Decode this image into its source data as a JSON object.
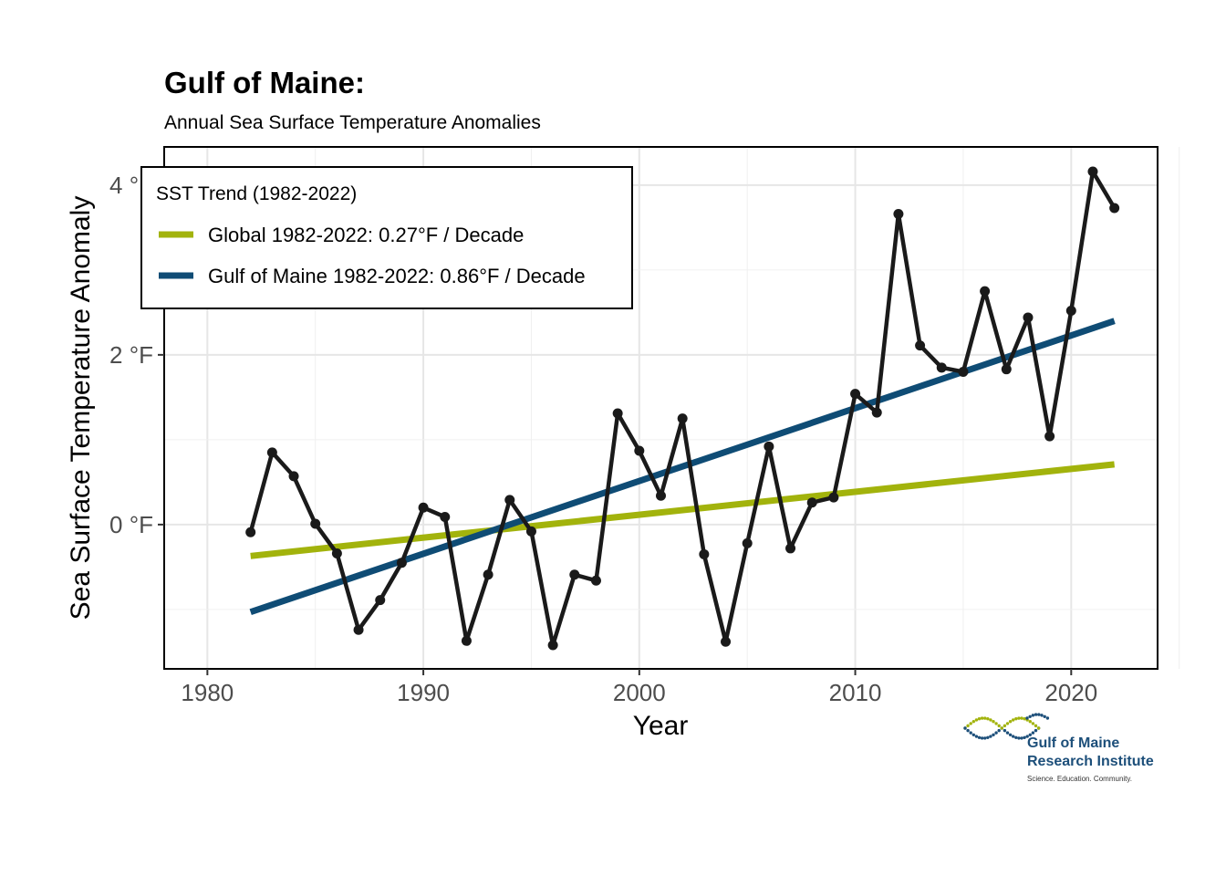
{
  "chart_data": {
    "type": "line",
    "title": "Gulf of Maine:",
    "subtitle": "Annual Sea Surface Temperature Anomalies",
    "xlabel": "Year",
    "ylabel": "Sea Surface Temperature Anomaly",
    "xlim": [
      1978,
      2024
    ],
    "ylim": [
      -1.7,
      4.45
    ],
    "x_ticks": [
      1980,
      1990,
      2000,
      2010,
      2020
    ],
    "x_tick_labels": [
      "1980",
      "1990",
      "2000",
      "2010",
      "2020"
    ],
    "y_ticks": [
      0,
      2,
      4
    ],
    "y_tick_labels": [
      "0 °F",
      "2 °F",
      "4 °F"
    ],
    "grid": true,
    "legend": {
      "title": "SST Trend (1982-2022)",
      "placement": "top-left",
      "entries": [
        {
          "label": "Global 1982-2022: 0.27°F / Decade",
          "color": "#a2b30c"
        },
        {
          "label": "Gulf of Maine 1982-2022: 0.86°F / Decade",
          "color": "#0f4c75"
        }
      ]
    },
    "series": [
      {
        "name": "",
        "color": "#1a1a1a",
        "x": [
          1982,
          1983,
          1984,
          1985,
          1986,
          1987,
          1988,
          1989,
          1990,
          1991,
          1992,
          1993,
          1994,
          1995,
          1996,
          1997,
          1998,
          1999,
          2000,
          2001,
          2002,
          2003,
          2004,
          2005,
          2006,
          2007,
          2008,
          2009,
          2010,
          2011,
          2012,
          2013,
          2014,
          2015,
          2016,
          2017,
          2018,
          2019,
          2020,
          2021,
          2022
        ],
        "y": [
          -0.09,
          0.85,
          0.57,
          0.01,
          -0.34,
          -1.24,
          -0.89,
          -0.45,
          0.2,
          0.09,
          -1.37,
          -0.59,
          0.29,
          -0.08,
          -1.42,
          -0.59,
          -0.66,
          1.31,
          0.87,
          0.34,
          1.25,
          -0.35,
          -1.38,
          -0.22,
          0.92,
          -0.28,
          0.26,
          0.32,
          1.54,
          1.32,
          3.66,
          2.11,
          1.85,
          1.8,
          2.75,
          1.83,
          2.44,
          1.04,
          2.52,
          4.16,
          3.73
        ]
      }
    ],
    "trend_lines": [
      {
        "name": "Global 1982-2022: 0.27°F / Decade",
        "color": "#a2b30c",
        "x": [
          1982,
          2022
        ],
        "y": [
          -0.37,
          0.71
        ]
      },
      {
        "name": "Gulf of Maine 1982-2022: 0.86°F / Decade",
        "color": "#0f4c75",
        "x": [
          1982,
          2022
        ],
        "y": [
          -1.03,
          2.4
        ]
      }
    ]
  },
  "logo": {
    "line1": "Gulf of Maine",
    "line2": "Research Institute",
    "tagline": "Science. Education. Community.",
    "colors": {
      "green": "#a2b30c",
      "blue": "#1d4f7a"
    }
  }
}
